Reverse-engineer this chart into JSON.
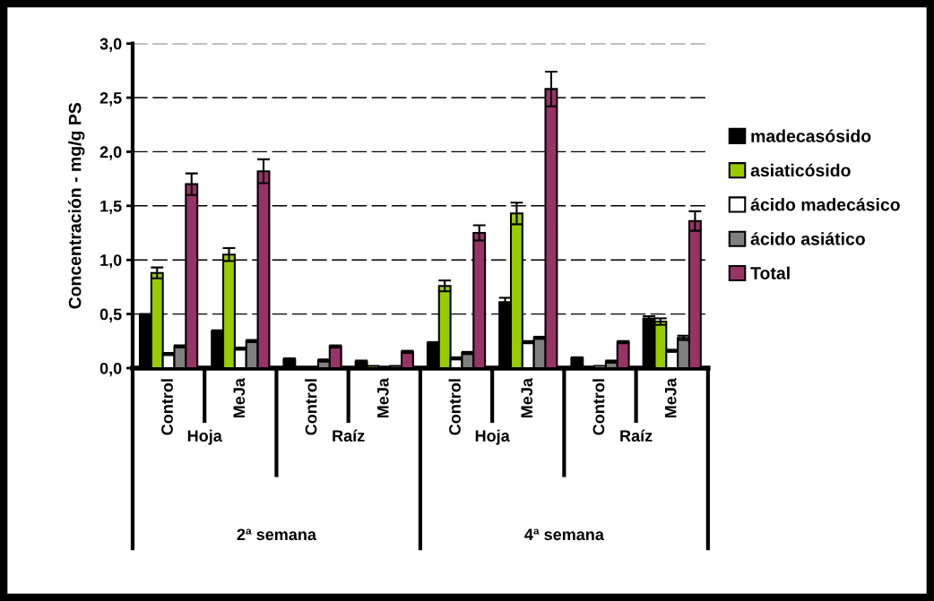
{
  "chart_data": {
    "type": "bar",
    "ylabel": "Concentración - mg/g PS",
    "categories": [
      "Control",
      "MeJa",
      "Control",
      "MeJa",
      "Control",
      "MeJa",
      "Control",
      "MeJa"
    ],
    "annotations": [
      "Hoja",
      "Raíz",
      "Hoja",
      "Raíz",
      "2ª semana",
      "4ª semana"
    ],
    "series": [
      {
        "name": "madecasósido",
        "color": "#000000",
        "values": [
          0.49,
          0.34,
          0.08,
          0.06,
          0.23,
          0.61,
          0.09,
          0.46
        ],
        "errors": [
          0.01,
          0.01,
          0.01,
          0.01,
          0.01,
          0.04,
          0.01,
          0.02
        ]
      },
      {
        "name": "asiaticósido",
        "color": "#99cc00",
        "values": [
          0.88,
          1.05,
          null,
          0.02,
          0.76,
          1.43,
          0.01,
          0.43
        ],
        "errors": [
          0.05,
          0.06,
          null,
          null,
          0.05,
          0.1,
          null,
          0.03
        ]
      },
      {
        "name": "ácido madecásico",
        "color": "#ffffff",
        "values": [
          0.13,
          0.18,
          null,
          null,
          0.09,
          0.24,
          0.02,
          0.16
        ],
        "errors": [
          0.01,
          0.01,
          null,
          null,
          0.01,
          0.01,
          null,
          0.01
        ]
      },
      {
        "name": "ácido asiático",
        "color": "#808080",
        "values": [
          0.2,
          0.25,
          0.07,
          0.02,
          0.14,
          0.28,
          0.06,
          0.28
        ],
        "errors": [
          0.01,
          0.01,
          0.01,
          null,
          0.01,
          0.01,
          0.01,
          0.02
        ]
      },
      {
        "name": "Total",
        "color": "#993366",
        "values": [
          1.7,
          1.82,
          0.2,
          0.15,
          1.25,
          2.58,
          0.24,
          1.36
        ],
        "errors": [
          0.1,
          0.11,
          0.01,
          0.01,
          0.07,
          0.16,
          0.01,
          0.09
        ]
      }
    ],
    "ylim": [
      0,
      3
    ],
    "yticks": [
      {
        "value": 0,
        "label": "0,0"
      },
      {
        "value": 0.5,
        "label": "0,5"
      },
      {
        "value": 1,
        "label": "1,0"
      },
      {
        "value": 1.5,
        "label": "1,5"
      },
      {
        "value": 2,
        "label": "2,0"
      },
      {
        "value": 2.5,
        "label": "2,5"
      },
      {
        "value": 3,
        "label": "3,0"
      }
    ],
    "grid": "y",
    "legend": "right"
  }
}
